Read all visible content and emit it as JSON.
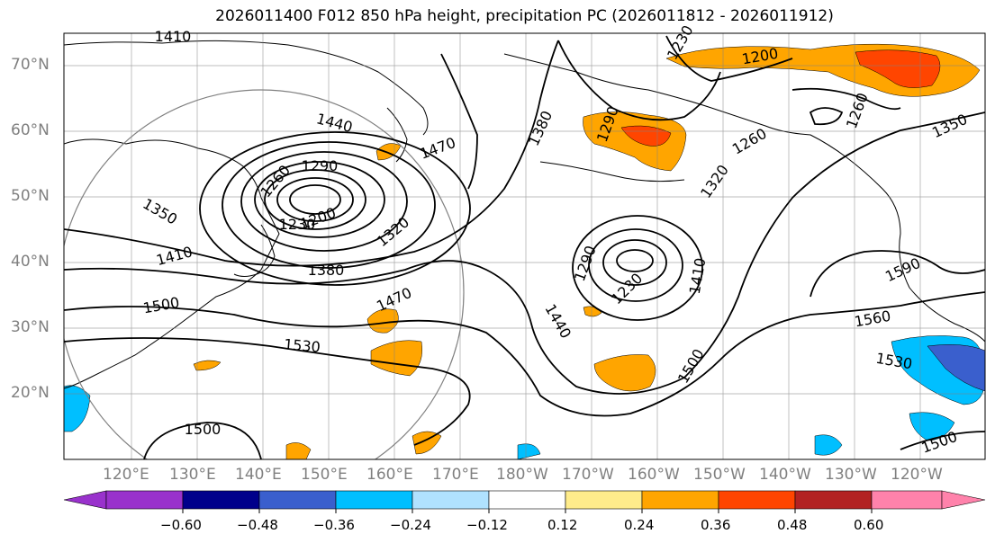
{
  "title": "2026011400 F012 850 hPa height, precipitation PC (2026011812 - 2026011912)",
  "lat_labels": [
    "70°N",
    "60°N",
    "50°N",
    "40°N",
    "30°N",
    "20°N"
  ],
  "lon_labels": [
    "120°E",
    "130°E",
    "140°E",
    "150°E",
    "160°E",
    "170°E",
    "180°W",
    "170°W",
    "160°W",
    "150°W",
    "140°W",
    "130°W",
    "120°W"
  ],
  "contour_labels": [
    "1410",
    "1440",
    "1470",
    "1290",
    "1260",
    "1200",
    "1230",
    "1350",
    "1320",
    "1380",
    "1410",
    "1500",
    "1470",
    "1530",
    "1500",
    "1200",
    "1230",
    "1380",
    "1290",
    "1260",
    "1260",
    "1320",
    "1410",
    "1230",
    "1290",
    "1440",
    "1500",
    "1590",
    "1560",
    "1530",
    "1350",
    "1500"
  ],
  "colorbar": {
    "tick_labels": [
      "−0.60",
      "−0.48",
      "−0.36",
      "−0.24",
      "−0.12",
      "0.12",
      "0.24",
      "0.36",
      "0.48",
      "0.60"
    ],
    "colors": [
      "#9932cc",
      "#00008b",
      "#3a5fcd",
      "#00bfff",
      "#b0e2ff",
      "#ffffff",
      "#ffec8b",
      "#ffa500",
      "#ff4500",
      "#b22222",
      "#ff82ab"
    ]
  }
}
